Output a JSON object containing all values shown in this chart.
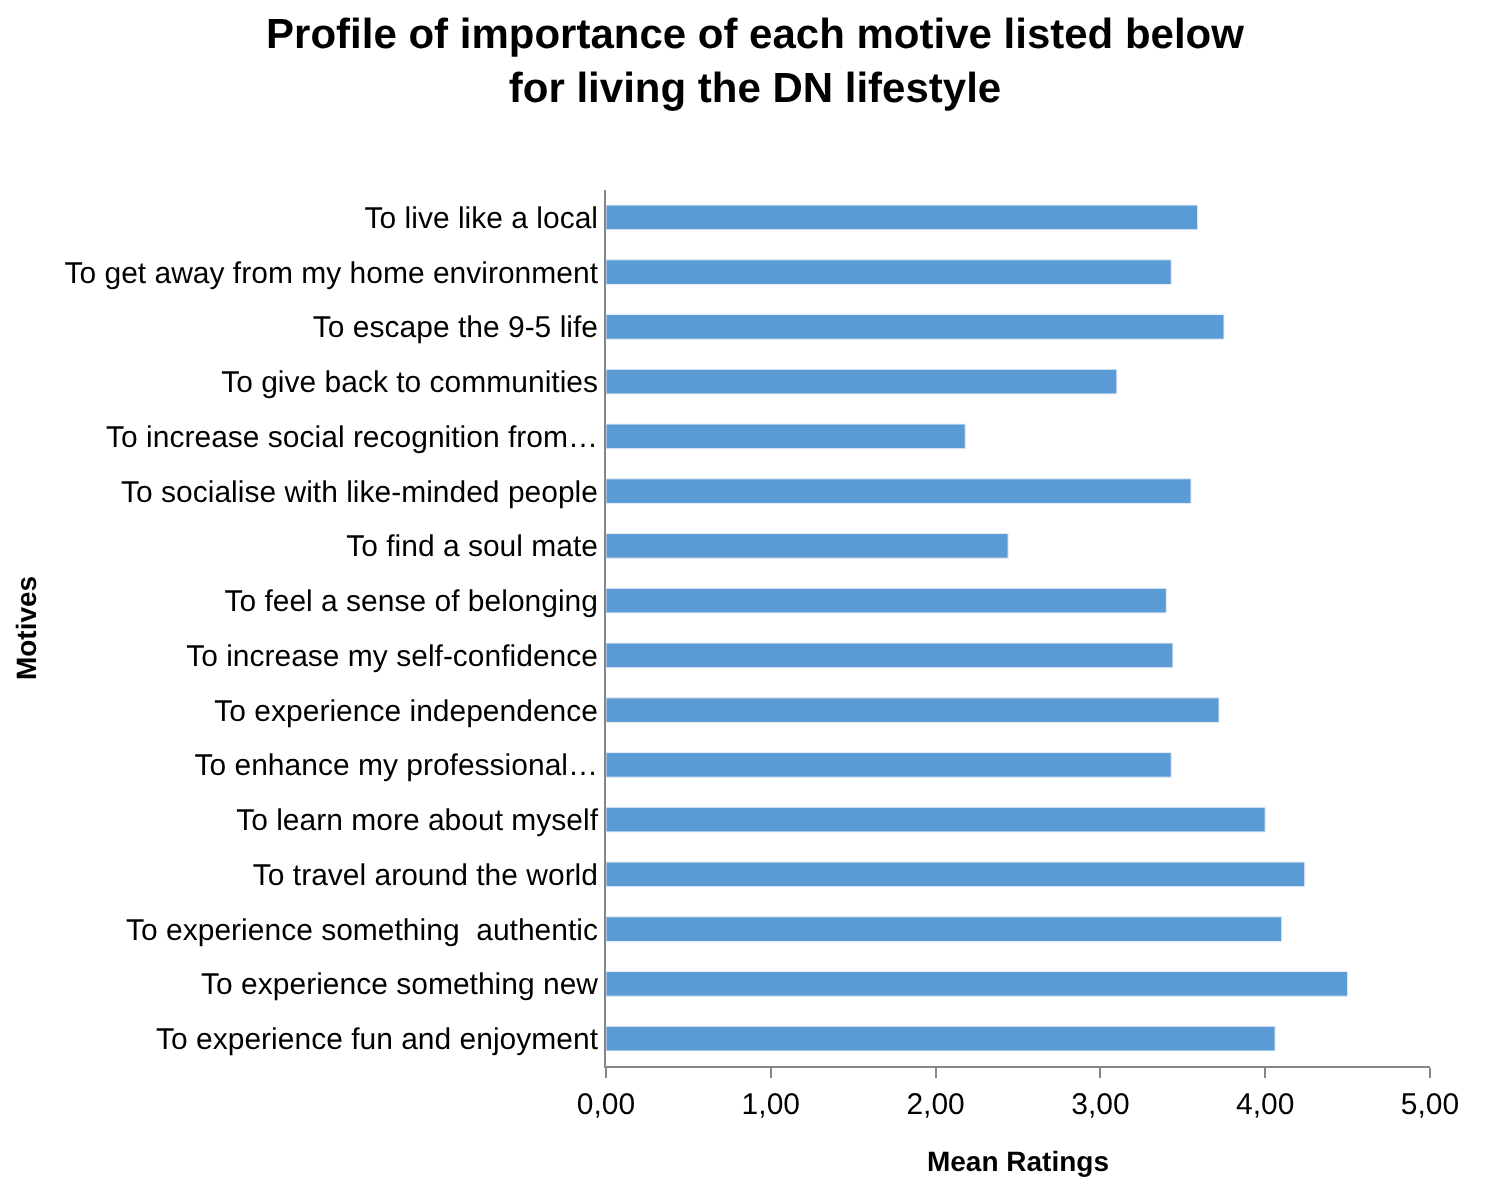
{
  "chart_data": {
    "type": "bar",
    "orientation": "horizontal",
    "title": "Profile of importance of each motive listed below\nfor living the DN lifestyle",
    "xlabel": "Mean Ratings",
    "ylabel": "Motives",
    "categories": [
      "To live like a local",
      "To get away from my home environment",
      "To escape the 9-5 life",
      "To give back to communities",
      "To increase social recognition from…",
      "To socialise with like-minded people",
      "To find a soul mate",
      "To feel a sense of belonging",
      "To increase my self-confidence",
      "To experience independence",
      "To enhance my professional…",
      "To learn more about myself",
      "To travel around the world",
      "To experience something  authentic",
      "To experience something new",
      "To experience fun and enjoyment"
    ],
    "values": [
      3.59,
      3.43,
      3.75,
      3.1,
      2.18,
      3.55,
      2.44,
      3.4,
      3.44,
      3.72,
      3.43,
      4.0,
      4.24,
      4.1,
      4.5,
      4.06
    ],
    "color": "#5b9bd5",
    "xlim": [
      0,
      5
    ],
    "xticks": [
      {
        "value": 0,
        "label": "0,00"
      },
      {
        "value": 1,
        "label": "1,00"
      },
      {
        "value": 2,
        "label": "2,00"
      },
      {
        "value": 3,
        "label": "3,00"
      },
      {
        "value": 4,
        "label": "4,00"
      },
      {
        "value": 5,
        "label": "5,00"
      }
    ],
    "legend": false
  }
}
